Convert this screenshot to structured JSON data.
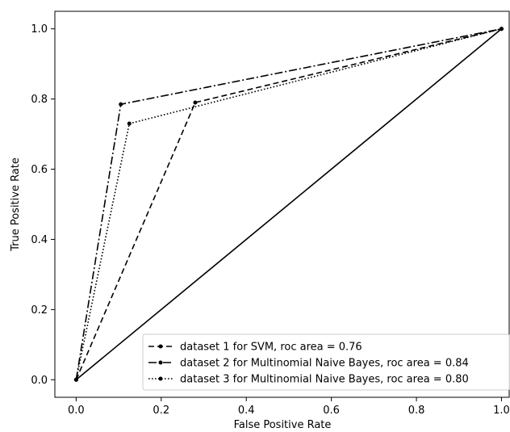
{
  "chart_data": {
    "type": "line",
    "xlabel": "False Positive Rate",
    "ylabel": "True Positive Rate",
    "xlim": [
      -0.05,
      1.02
    ],
    "ylim": [
      -0.05,
      1.05
    ],
    "x_ticks": [
      0.0,
      0.2,
      0.4,
      0.6,
      0.8,
      1.0
    ],
    "y_ticks": [
      0.0,
      0.2,
      0.4,
      0.6,
      0.8,
      1.0
    ],
    "x_tick_labels": [
      "0.0",
      "0.2",
      "0.4",
      "0.6",
      "0.8",
      "1.0"
    ],
    "y_tick_labels": [
      "0.0",
      "0.2",
      "0.4",
      "0.6",
      "0.8",
      "1.0"
    ],
    "grid": false,
    "legend_position": "lower-right",
    "diagonal": {
      "x": [
        0,
        1
      ],
      "y": [
        0,
        1
      ],
      "style": "solid"
    },
    "series": [
      {
        "name": "dataset 1 for SVM, roc area = 0.76",
        "style": "dashed",
        "x": [
          0,
          0.28,
          1
        ],
        "y": [
          0,
          0.79,
          1
        ]
      },
      {
        "name": "dataset 2 for Multinomial Naive Bayes, roc area = 0.84",
        "style": "dashdot",
        "x": [
          0,
          0.105,
          1
        ],
        "y": [
          0,
          0.785,
          1
        ]
      },
      {
        "name": "dataset 3 for Multinomial Naive Bayes, roc area = 0.80",
        "style": "dotted",
        "x": [
          0,
          0.125,
          1
        ],
        "y": [
          0,
          0.73,
          1
        ]
      }
    ]
  }
}
